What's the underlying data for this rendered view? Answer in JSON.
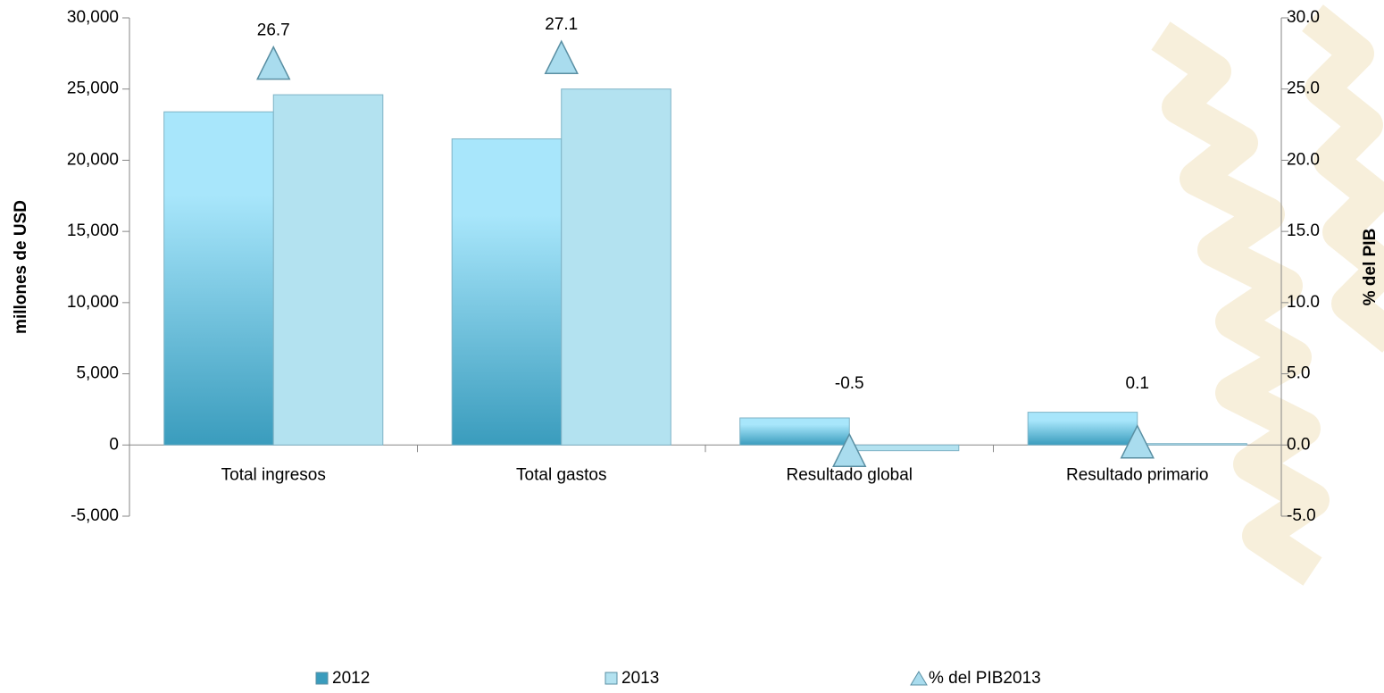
{
  "chart_data": {
    "type": "bar",
    "categories": [
      "Total ingresos",
      "Total gastos",
      "Resultado global",
      "Resultado primario"
    ],
    "series": [
      {
        "name": "2012",
        "color": "#3a9cbd",
        "values": [
          23400,
          21500,
          1900,
          2300
        ]
      },
      {
        "name": "2013",
        "color": "#b3e2f0",
        "values": [
          24600,
          25000,
          -400,
          100
        ]
      },
      {
        "name": "% del PIB2013",
        "color": "#a9dcee",
        "type": "scatter",
        "axis": "y2",
        "values": [
          26.7,
          27.1,
          -0.5,
          0.1
        ]
      }
    ],
    "ylabel": "millones de USD",
    "y2label": "% del PIB",
    "ylim": [
      -5000,
      30000
    ],
    "yticks": [
      {
        "value": -5000,
        "label": "-5,000"
      },
      0,
      {
        "value": 5000,
        "label": "5,000"
      },
      {
        "value": 10000,
        "label": "10,000"
      },
      {
        "value": 15000,
        "label": "15,000"
      },
      {
        "value": 20000,
        "label": "20,000"
      },
      {
        "value": 25000,
        "label": "25,000"
      },
      {
        "value": 30000,
        "label": "30,000"
      }
    ],
    "y2lim": [
      -5,
      30
    ],
    "y2ticks": [
      {
        "value": -5,
        "label": "-5.0"
      },
      {
        "value": 0,
        "label": "0.0"
      },
      {
        "value": 5,
        "label": "5.0"
      },
      {
        "value": 10,
        "label": "10.0"
      },
      {
        "value": 15,
        "label": "15.0"
      },
      {
        "value": 20,
        "label": "20.0"
      },
      {
        "value": 25,
        "label": "25.0"
      },
      {
        "value": 30,
        "label": "30.0"
      }
    ],
    "grid": false,
    "legend": "bottom"
  }
}
